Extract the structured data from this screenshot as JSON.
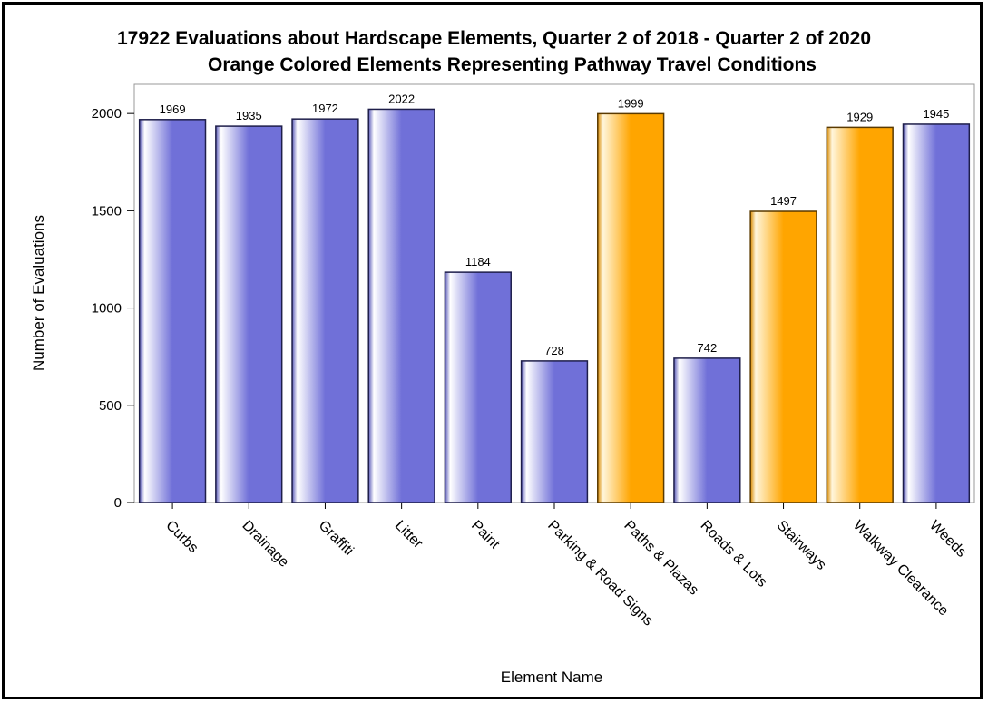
{
  "chart_data": {
    "type": "bar",
    "title": "17922 Evaluations about Hardscape Elements, Quarter 2 of 2018 - Quarter 2 of 2020",
    "subtitle": "Orange Colored Elements Representing Pathway Travel Conditions",
    "xlabel": "Element Name",
    "ylabel": "Number of Evaluations",
    "ylim": [
      0,
      2150
    ],
    "yticks": [
      0,
      500,
      1000,
      1500,
      2000
    ],
    "grid": false,
    "categories": [
      "Curbs",
      "Drainage",
      "Graffiti",
      "Litter",
      "Paint",
      "Parking & Road Signs",
      "Paths & Plazas",
      "Roads & Lots",
      "Stairways",
      "Walkway Clearance",
      "Weeds"
    ],
    "values": [
      1969,
      1935,
      1972,
      2022,
      1184,
      728,
      1999,
      742,
      1497,
      1929,
      1945
    ],
    "pathway_travel": [
      false,
      false,
      false,
      false,
      false,
      false,
      true,
      false,
      true,
      true,
      false
    ],
    "colors": {
      "default": "#7070d8",
      "highlight": "#ffa500"
    }
  }
}
